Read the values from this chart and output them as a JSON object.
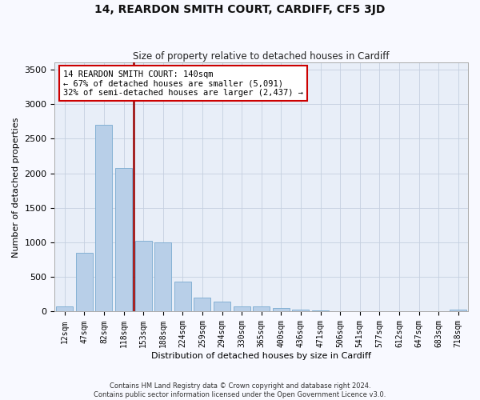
{
  "title": "14, REARDON SMITH COURT, CARDIFF, CF5 3JD",
  "subtitle": "Size of property relative to detached houses in Cardiff",
  "xlabel": "Distribution of detached houses by size in Cardiff",
  "ylabel": "Number of detached properties",
  "categories": [
    "12sqm",
    "47sqm",
    "82sqm",
    "118sqm",
    "153sqm",
    "188sqm",
    "224sqm",
    "259sqm",
    "294sqm",
    "330sqm",
    "365sqm",
    "400sqm",
    "436sqm",
    "471sqm",
    "506sqm",
    "541sqm",
    "577sqm",
    "612sqm",
    "647sqm",
    "683sqm",
    "718sqm"
  ],
  "bar_values": [
    70,
    850,
    2700,
    2070,
    1020,
    1000,
    430,
    200,
    140,
    80,
    80,
    50,
    30,
    20,
    10,
    0,
    0,
    0,
    0,
    0,
    30
  ],
  "bar_color": "#b8cfe8",
  "bar_edgecolor": "#7aaad0",
  "vline_color": "#990000",
  "annotation_line1": "14 REARDON SMITH COURT: 140sqm",
  "annotation_line2": "← 67% of detached houses are smaller (5,091)",
  "annotation_line3": "32% of semi-detached houses are larger (2,437) →",
  "annotation_box_edgecolor": "#cc0000",
  "annotation_box_facecolor": "#ffffff",
  "ylim": [
    0,
    3600
  ],
  "yticks": [
    0,
    500,
    1000,
    1500,
    2000,
    2500,
    3000,
    3500
  ],
  "footnote_line1": "Contains HM Land Registry data © Crown copyright and database right 2024.",
  "footnote_line2": "Contains public sector information licensed under the Open Government Licence v3.0.",
  "background_color": "#e8eef8",
  "plot_background": "#f8f9ff",
  "grid_color": "#c5cfe0",
  "title_fontsize": 10,
  "subtitle_fontsize": 8.5,
  "ylabel_fontsize": 8,
  "xlabel_fontsize": 8,
  "tick_fontsize": 7,
  "annot_fontsize": 7.5,
  "footnote_fontsize": 6
}
